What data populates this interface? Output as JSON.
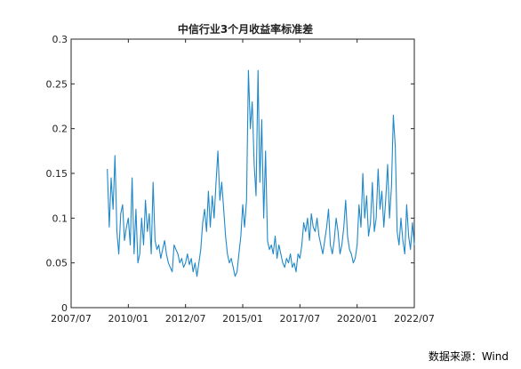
{
  "chart_data": {
    "type": "line",
    "title": "中信行业3个月收益率标准差",
    "xlabel": "",
    "ylabel": "",
    "xlim": [
      "2007-07",
      "2022-07"
    ],
    "ylim": [
      0,
      0.3
    ],
    "x_ticks": [
      "2007/07",
      "2010/01",
      "2012/07",
      "2015/01",
      "2017/07",
      "2020/01",
      "2022/07"
    ],
    "y_ticks": [
      "0",
      "0.05",
      "0.1",
      "0.15",
      "0.2",
      "0.25",
      "0.3"
    ],
    "y_tick_values": [
      0,
      0.05,
      0.1,
      0.15,
      0.2,
      0.25,
      0.3
    ],
    "grid": false,
    "line_color": "#1f88c8",
    "series": [
      {
        "x": [
          "2009-02",
          "2009-03",
          "2009-04",
          "2009-05",
          "2009-06",
          "2009-07",
          "2009-08",
          "2009-09",
          "2009-10",
          "2009-11",
          "2009-12",
          "2010-01",
          "2010-02",
          "2010-03",
          "2010-04",
          "2010-05",
          "2010-06",
          "2010-07",
          "2010-08",
          "2010-09",
          "2010-10",
          "2010-11",
          "2010-12",
          "2011-01",
          "2011-02",
          "2011-03",
          "2011-04",
          "2011-05",
          "2011-06",
          "2011-07",
          "2011-08",
          "2011-09",
          "2011-10",
          "2011-11",
          "2011-12",
          "2012-01",
          "2012-02",
          "2012-03",
          "2012-04",
          "2012-05",
          "2012-06",
          "2012-07",
          "2012-08",
          "2012-09",
          "2012-10",
          "2012-11",
          "2012-12",
          "2013-01",
          "2013-02",
          "2013-03",
          "2013-04",
          "2013-05",
          "2013-06",
          "2013-07",
          "2013-08",
          "2013-09",
          "2013-10",
          "2013-11",
          "2013-12",
          "2014-01",
          "2014-02",
          "2014-03",
          "2014-04",
          "2014-05",
          "2014-06",
          "2014-07",
          "2014-08",
          "2014-09",
          "2014-10",
          "2014-11",
          "2014-12",
          "2015-01",
          "2015-02",
          "2015-03",
          "2015-04",
          "2015-05",
          "2015-06",
          "2015-07",
          "2015-08",
          "2015-09",
          "2015-10",
          "2015-11",
          "2015-12",
          "2016-01",
          "2016-02",
          "2016-03",
          "2016-04",
          "2016-05",
          "2016-06",
          "2016-07",
          "2016-08",
          "2016-09",
          "2016-10",
          "2016-11",
          "2016-12",
          "2017-01",
          "2017-02",
          "2017-03",
          "2017-04",
          "2017-05",
          "2017-06",
          "2017-07",
          "2017-08",
          "2017-09",
          "2017-10",
          "2017-11",
          "2017-12",
          "2018-01",
          "2018-02",
          "2018-03",
          "2018-04",
          "2018-05",
          "2018-06",
          "2018-07",
          "2018-08",
          "2018-09",
          "2018-10",
          "2018-11",
          "2018-12",
          "2019-01",
          "2019-02",
          "2019-03",
          "2019-04",
          "2019-05",
          "2019-06",
          "2019-07",
          "2019-08",
          "2019-09",
          "2019-10",
          "2019-11",
          "2019-12",
          "2020-01",
          "2020-02",
          "2020-03",
          "2020-04",
          "2020-05",
          "2020-06",
          "2020-07",
          "2020-08",
          "2020-09",
          "2020-10",
          "2020-11",
          "2020-12",
          "2021-01",
          "2021-02",
          "2021-03",
          "2021-04",
          "2021-05",
          "2021-06",
          "2021-07",
          "2021-08",
          "2021-09",
          "2021-10",
          "2021-11",
          "2021-12",
          "2022-01",
          "2022-02",
          "2022-03",
          "2022-04",
          "2022-05",
          "2022-06",
          "2022-07"
        ],
        "y": [
          0.155,
          0.09,
          0.145,
          0.11,
          0.17,
          0.085,
          0.06,
          0.105,
          0.115,
          0.075,
          0.09,
          0.1,
          0.07,
          0.145,
          0.06,
          0.11,
          0.05,
          0.06,
          0.1,
          0.07,
          0.12,
          0.085,
          0.105,
          0.06,
          0.14,
          0.075,
          0.065,
          0.07,
          0.055,
          0.065,
          0.075,
          0.06,
          0.05,
          0.045,
          0.04,
          0.07,
          0.065,
          0.06,
          0.05,
          0.055,
          0.045,
          0.05,
          0.06,
          0.048,
          0.055,
          0.04,
          0.05,
          0.035,
          0.05,
          0.065,
          0.095,
          0.11,
          0.085,
          0.13,
          0.09,
          0.125,
          0.1,
          0.14,
          0.175,
          0.12,
          0.14,
          0.11,
          0.08,
          0.06,
          0.05,
          0.055,
          0.045,
          0.035,
          0.04,
          0.06,
          0.08,
          0.115,
          0.09,
          0.12,
          0.265,
          0.2,
          0.23,
          0.16,
          0.125,
          0.265,
          0.14,
          0.21,
          0.1,
          0.175,
          0.075,
          0.065,
          0.07,
          0.06,
          0.08,
          0.055,
          0.07,
          0.06,
          0.05,
          0.045,
          0.055,
          0.05,
          0.06,
          0.045,
          0.05,
          0.04,
          0.06,
          0.055,
          0.07,
          0.095,
          0.085,
          0.1,
          0.075,
          0.105,
          0.09,
          0.085,
          0.1,
          0.08,
          0.07,
          0.06,
          0.075,
          0.09,
          0.11,
          0.07,
          0.06,
          0.075,
          0.1,
          0.085,
          0.06,
          0.07,
          0.09,
          0.12,
          0.08,
          0.065,
          0.06,
          0.05,
          0.055,
          0.07,
          0.115,
          0.09,
          0.15,
          0.1,
          0.125,
          0.08,
          0.095,
          0.14,
          0.085,
          0.1,
          0.155,
          0.11,
          0.13,
          0.09,
          0.12,
          0.16,
          0.1,
          0.135,
          0.215,
          0.18,
          0.085,
          0.07,
          0.1,
          0.075,
          0.06,
          0.115,
          0.08,
          0.065,
          0.095,
          0.07
        ]
      }
    ]
  },
  "source_note": "数据来源：Wind"
}
